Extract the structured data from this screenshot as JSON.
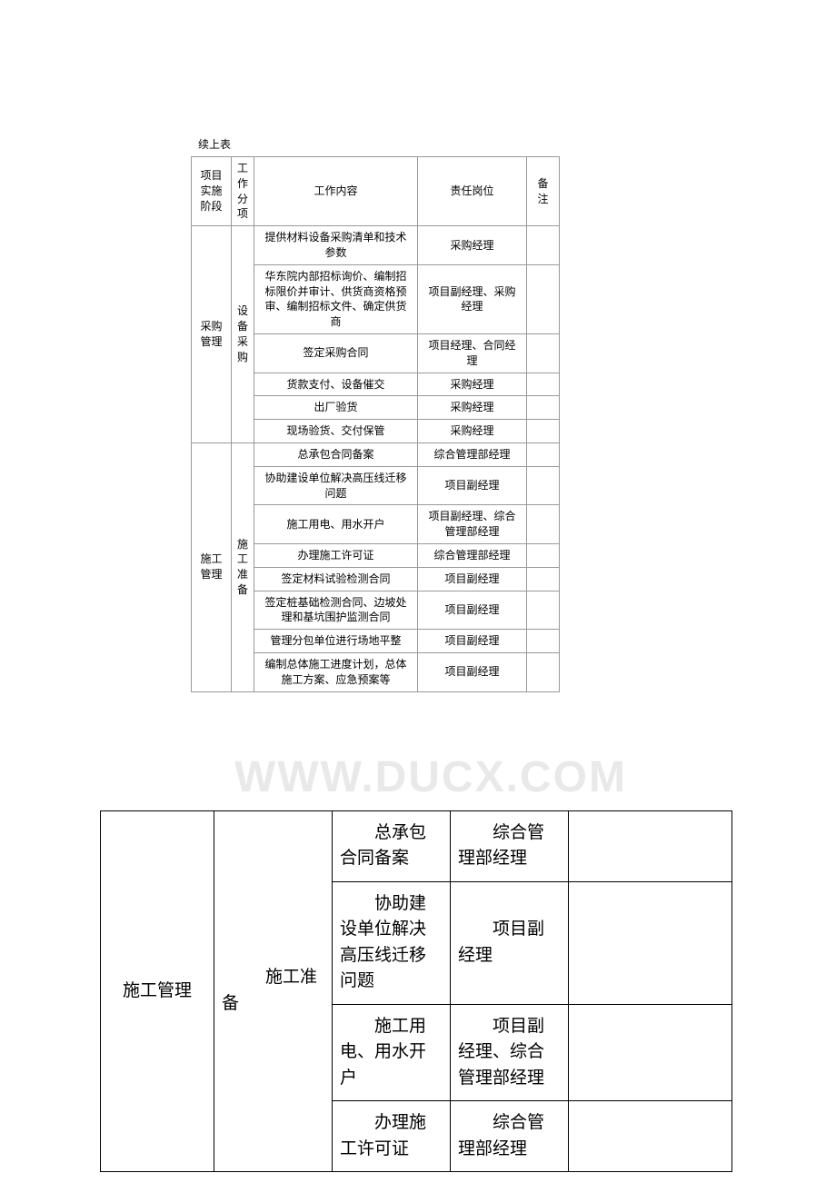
{
  "topTable": {
    "caption": "续上表",
    "header": {
      "phase": "项目实施阶段",
      "category": "工作分项",
      "content": "工作内容",
      "responsible": "责任岗位",
      "remark": "备注"
    },
    "section1": {
      "phase": "采购管理",
      "category": "设备采购",
      "rows": [
        {
          "content": "提供材料设备采购清单和技术参数",
          "responsible": "采购经理"
        },
        {
          "content": "华东院内部招标询价、编制招标限价并审计、供货商资格预审、编制招标文件、确定供货商",
          "responsible": "项目副经理、采购经理"
        },
        {
          "content": "签定采购合同",
          "responsible": "项目经理、合同经理"
        },
        {
          "content": "货款支付、设备催交",
          "responsible": "采购经理"
        },
        {
          "content": "出厂验货",
          "responsible": "采购经理"
        },
        {
          "content": "现场验货、交付保管",
          "responsible": "采购经理"
        }
      ]
    },
    "section2": {
      "phase": "施工管理",
      "category": "施工准备",
      "rows": [
        {
          "content": "总承包合同备案",
          "responsible": "综合管理部经理"
        },
        {
          "content": "协助建设单位解决高压线迁移问题",
          "responsible": "项目副经理"
        },
        {
          "content": "施工用电、用水开户",
          "responsible": "项目副经理、综合管理部经理"
        },
        {
          "content": "办理施工许可证",
          "responsible": "综合管理部经理"
        },
        {
          "content": "签定材料试验检测合同",
          "responsible": "项目副经理"
        },
        {
          "content": "签定桩基础检测合同、边坡处理和基坑围护监测合同",
          "responsible": "项目副经理"
        },
        {
          "content": "管理分包单位进行场地平整",
          "responsible": "项目副经理"
        },
        {
          "content": "编制总体施工进度计划，总体施工方案、应急预案等",
          "responsible": "项目副经理"
        }
      ]
    }
  },
  "watermark": "WWW.DUCX.COM",
  "bottomTable": {
    "col1": "施工管理",
    "col2_prefix": "备",
    "col2_suffix": "施工准",
    "rows": [
      {
        "c3_line1": "总承包",
        "c3_line2": "合同备案",
        "c4_line1": "综合管",
        "c4_line2": "理部经理"
      },
      {
        "c3_line1": "协助建",
        "c3_line2": "设单位解决高压线迁移问题",
        "c4_line1": "项目副",
        "c4_line2": "经理"
      },
      {
        "c3_line1": "施工用",
        "c3_line2": "电、用水开户",
        "c4_line1": "项目副",
        "c4_line2": "经理、综合管理部经理"
      },
      {
        "c3_line1": "办理施",
        "c3_line2": "工许可证",
        "c4_line1": "综合管",
        "c4_line2": "理部经理"
      }
    ]
  }
}
